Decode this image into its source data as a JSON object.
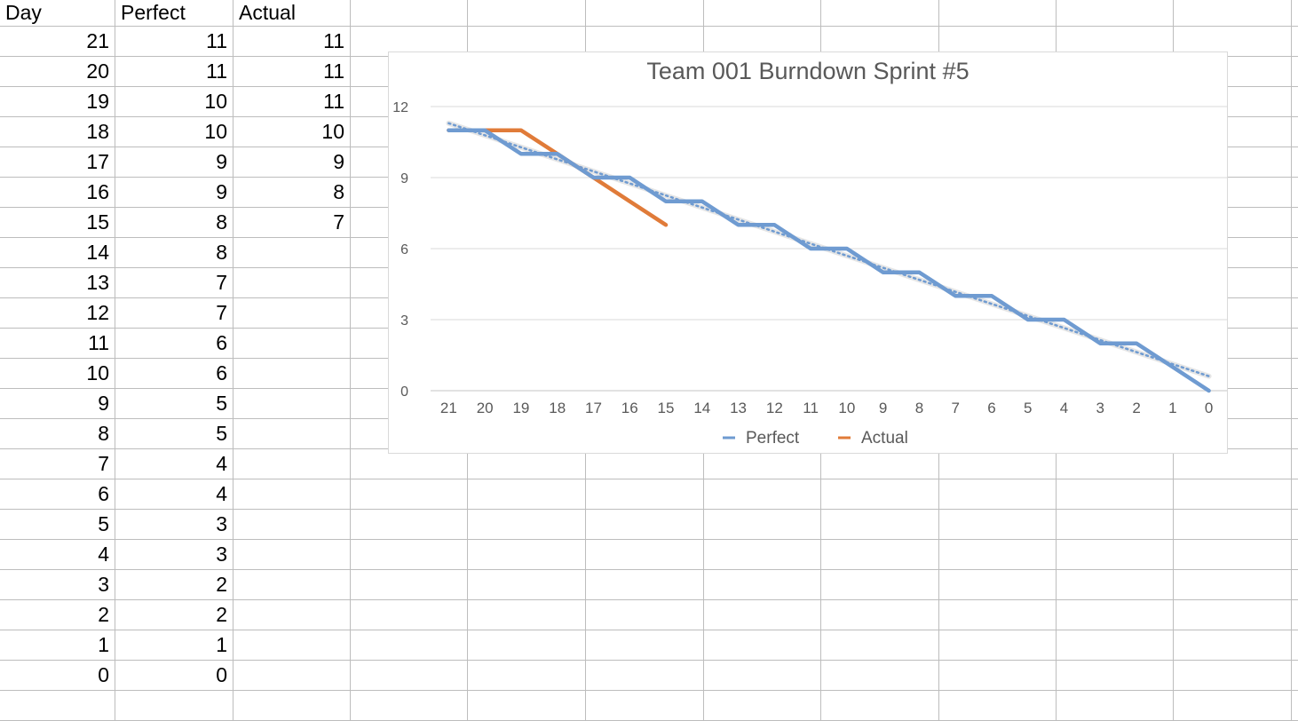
{
  "sheet": {
    "headers": [
      "Day",
      "Perfect",
      "Actual"
    ],
    "rows": [
      [
        "21",
        "11",
        "11"
      ],
      [
        "20",
        "11",
        "11"
      ],
      [
        "19",
        "10",
        "11"
      ],
      [
        "18",
        "10",
        "10"
      ],
      [
        "17",
        "9",
        "9"
      ],
      [
        "16",
        "9",
        "8"
      ],
      [
        "15",
        "8",
        "7"
      ],
      [
        "14",
        "8",
        ""
      ],
      [
        "13",
        "7",
        ""
      ],
      [
        "12",
        "7",
        ""
      ],
      [
        "11",
        "6",
        ""
      ],
      [
        "10",
        "6",
        ""
      ],
      [
        "9",
        "5",
        ""
      ],
      [
        "8",
        "5",
        ""
      ],
      [
        "7",
        "4",
        ""
      ],
      [
        "6",
        "4",
        ""
      ],
      [
        "5",
        "3",
        ""
      ],
      [
        "4",
        "3",
        ""
      ],
      [
        "3",
        "2",
        ""
      ],
      [
        "2",
        "2",
        ""
      ],
      [
        "1",
        "1",
        ""
      ],
      [
        "0",
        "0",
        ""
      ]
    ]
  },
  "chart_data": {
    "type": "line",
    "title": "Team 001 Burndown Sprint #5",
    "xlabel": "",
    "ylabel": "",
    "categories": [
      "21",
      "20",
      "19",
      "18",
      "17",
      "16",
      "15",
      "14",
      "13",
      "12",
      "11",
      "10",
      "9",
      "8",
      "7",
      "6",
      "5",
      "4",
      "3",
      "2",
      "1",
      "0"
    ],
    "series": [
      {
        "name": "Perfect",
        "color": "#6f9bd1",
        "values": [
          11,
          11,
          10,
          10,
          9,
          9,
          8,
          8,
          7,
          7,
          6,
          6,
          5,
          5,
          4,
          4,
          3,
          3,
          2,
          2,
          1,
          0
        ]
      },
      {
        "name": "Actual",
        "color": "#e07b39",
        "values": [
          11,
          11,
          11,
          10,
          9,
          8,
          7,
          null,
          null,
          null,
          null,
          null,
          null,
          null,
          null,
          null,
          null,
          null,
          null,
          null,
          null,
          null
        ]
      }
    ],
    "trendline": {
      "series": "Perfect",
      "style": "dotted",
      "color": "#6f9bd1"
    },
    "ylim": [
      0,
      12
    ],
    "yticks": [
      0,
      3,
      6,
      9,
      12
    ],
    "grid": true,
    "legend": "bottom"
  }
}
